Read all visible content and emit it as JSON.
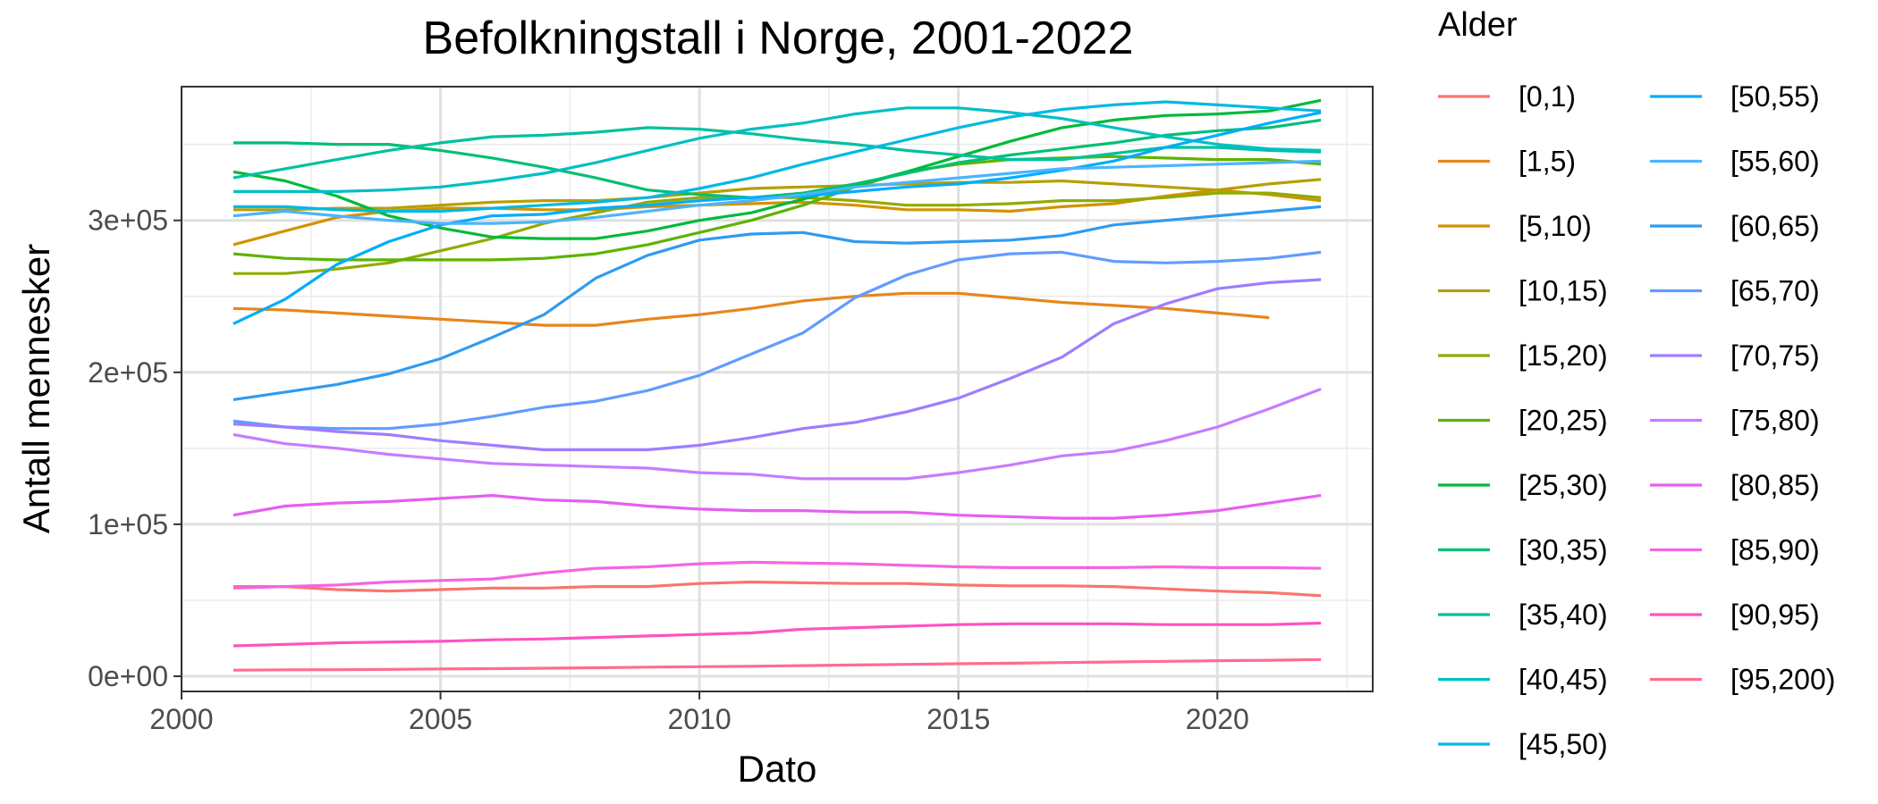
{
  "chart_data": {
    "type": "line",
    "title": "Befolkningstall i Norge, 2001-2022",
    "xlabel": "Dato",
    "ylabel": "Antall mennesker",
    "xlim": [
      2000,
      2023
    ],
    "ylim": [
      -10000,
      388000
    ],
    "x_ticks": [
      2000,
      2005,
      2010,
      2015,
      2020
    ],
    "x_tick_labels": [
      "2000",
      "2005",
      "2010",
      "2015",
      "2020"
    ],
    "y_ticks": [
      0,
      100000,
      200000,
      300000
    ],
    "y_tick_labels": [
      "0e+00",
      "1e+05",
      "2e+05",
      "3e+05"
    ],
    "grid": true,
    "legend_title": "Alder",
    "legend_position": "right",
    "x": [
      2001,
      2002,
      2003,
      2004,
      2005,
      2006,
      2007,
      2008,
      2009,
      2010,
      2011,
      2012,
      2013,
      2014,
      2015,
      2016,
      2017,
      2018,
      2019,
      2020,
      2021,
      2022
    ],
    "series": [
      {
        "name": "[0,1)",
        "color": "#F8766D",
        "values": [
          59000,
          59000,
          57000,
          56000,
          57000,
          58000,
          58000,
          59000,
          59000,
          61000,
          62000,
          61500,
          61000,
          61000,
          60000,
          59500,
          59500,
          59000,
          57500,
          56000,
          55000,
          53000
        ]
      },
      {
        "name": "[1,5)",
        "color": "#E7861B",
        "values": [
          242000,
          241000,
          239000,
          237000,
          235000,
          233000,
          231000,
          231000,
          235000,
          238000,
          242000,
          247000,
          250000,
          252000,
          252000,
          249000,
          246000,
          244000,
          242000,
          239000,
          236000,
          null
        ]
      },
      {
        "name": "[5,10)",
        "color": "#D39200",
        "values": [
          284000,
          293000,
          302000,
          306000,
          308000,
          308000,
          307000,
          307000,
          309000,
          310000,
          311000,
          312000,
          310000,
          307000,
          307000,
          306000,
          309000,
          311000,
          316000,
          320000,
          317000,
          313000
        ]
      },
      {
        "name": "[10,15)",
        "color": "#B79F00",
        "values": [
          307000,
          307000,
          308000,
          308000,
          310000,
          312000,
          313000,
          313000,
          315000,
          318000,
          321000,
          322000,
          323000,
          324000,
          325000,
          325000,
          326000,
          324000,
          322000,
          320000,
          324000,
          327000
        ]
      },
      {
        "name": "[15,20)",
        "color": "#93AA00",
        "values": [
          265000,
          265000,
          268000,
          272000,
          280000,
          288000,
          298000,
          305000,
          312000,
          315000,
          315000,
          315000,
          313000,
          310000,
          310000,
          311000,
          313000,
          313000,
          315000,
          318000,
          318000,
          315000
        ]
      },
      {
        "name": "[20,25)",
        "color": "#5EB300",
        "values": [
          278000,
          275000,
          274000,
          274000,
          274000,
          274000,
          275000,
          278000,
          284000,
          292000,
          300000,
          310000,
          322000,
          332000,
          337000,
          340000,
          341000,
          342000,
          341000,
          340000,
          340000,
          337000
        ]
      },
      {
        "name": "[25,30)",
        "color": "#00BA38",
        "values": [
          332000,
          326000,
          316000,
          303000,
          295000,
          289000,
          288000,
          288000,
          293000,
          300000,
          305000,
          314000,
          323000,
          332000,
          342000,
          352000,
          361000,
          366000,
          369000,
          370000,
          372000,
          379000
        ]
      },
      {
        "name": "[30,35)",
        "color": "#00BF74",
        "values": [
          351000,
          351000,
          350000,
          350000,
          346000,
          341000,
          335000,
          328000,
          320000,
          317000,
          315000,
          318000,
          324000,
          331000,
          338000,
          343000,
          347000,
          351000,
          356000,
          359000,
          361000,
          366000
        ]
      },
      {
        "name": "[35,40)",
        "color": "#00C19F",
        "values": [
          328000,
          334000,
          340000,
          346000,
          351000,
          355000,
          356000,
          358000,
          361000,
          360000,
          357000,
          353000,
          350000,
          346000,
          343000,
          340000,
          340000,
          344000,
          348000,
          348000,
          346000,
          345000
        ]
      },
      {
        "name": "[40,45)",
        "color": "#00BFC4",
        "values": [
          319000,
          319000,
          319000,
          320000,
          322000,
          326000,
          331000,
          338000,
          346000,
          354000,
          360000,
          364000,
          370000,
          374000,
          374000,
          371000,
          367000,
          361000,
          355000,
          350000,
          347000,
          346000
        ]
      },
      {
        "name": "[45,50)",
        "color": "#00B9E3",
        "values": [
          309000,
          309000,
          307000,
          306000,
          306000,
          308000,
          310000,
          312000,
          315000,
          321000,
          328000,
          337000,
          345000,
          353000,
          361000,
          368000,
          373000,
          376000,
          378000,
          376000,
          374000,
          372000
        ]
      },
      {
        "name": "[50,55)",
        "color": "#00ADFA",
        "values": [
          232000,
          248000,
          271000,
          286000,
          297000,
          303000,
          304000,
          308000,
          310000,
          313000,
          315000,
          316000,
          319000,
          322000,
          324000,
          328000,
          333000,
          339000,
          348000,
          356000,
          364000,
          371000
        ]
      },
      {
        "name": "[55,60)",
        "color": "#4CB4FF",
        "values": [
          303000,
          306000,
          303000,
          300000,
          298000,
          298000,
          299000,
          302000,
          306000,
          310000,
          313000,
          317000,
          322000,
          325000,
          328000,
          331000,
          334000,
          335000,
          336000,
          337000,
          338000,
          339000
        ]
      },
      {
        "name": "[60,65)",
        "color": "#2F9BF0",
        "values": [
          182000,
          187000,
          192000,
          199000,
          209000,
          223000,
          238000,
          262000,
          277000,
          287000,
          291000,
          292000,
          286000,
          285000,
          286000,
          287000,
          290000,
          297000,
          300000,
          303000,
          306000,
          309000
        ]
      },
      {
        "name": "[65,70)",
        "color": "#619CFF",
        "values": [
          168000,
          164000,
          163000,
          163000,
          166000,
          171000,
          177000,
          181000,
          188000,
          198000,
          212000,
          226000,
          249000,
          264000,
          274000,
          278000,
          279000,
          273000,
          272000,
          273000,
          275000,
          279000
        ]
      },
      {
        "name": "[70,75)",
        "color": "#9E7DFF",
        "values": [
          166000,
          164000,
          161000,
          159000,
          155000,
          152000,
          149000,
          149000,
          149000,
          152000,
          157000,
          163000,
          167000,
          174000,
          183000,
          196000,
          210000,
          232000,
          245000,
          255000,
          259000,
          261000
        ]
      },
      {
        "name": "[75,80)",
        "color": "#C77CFF",
        "values": [
          159000,
          153000,
          150000,
          146000,
          143000,
          140000,
          139000,
          138000,
          137000,
          134000,
          133000,
          130000,
          130000,
          130000,
          134000,
          139000,
          145000,
          148000,
          155000,
          164000,
          176000,
          189000
        ]
      },
      {
        "name": "[80,85)",
        "color": "#E55FF2",
        "values": [
          106000,
          112000,
          114000,
          115000,
          117000,
          119000,
          116000,
          115000,
          112000,
          110000,
          109000,
          109000,
          108000,
          108000,
          106000,
          105000,
          104000,
          104000,
          106000,
          109000,
          114000,
          119000
        ]
      },
      {
        "name": "[85,90)",
        "color": "#F564E3",
        "values": [
          58000,
          59000,
          60000,
          62000,
          63000,
          64000,
          68000,
          71000,
          72000,
          74000,
          75000,
          74500,
          74000,
          73000,
          72000,
          71500,
          71500,
          71500,
          72000,
          71500,
          71500,
          71000
        ]
      },
      {
        "name": "[90,95)",
        "color": "#FF52C0",
        "values": [
          20000,
          21000,
          22000,
          22500,
          23000,
          24000,
          24500,
          25500,
          26500,
          27500,
          28500,
          31000,
          32000,
          33000,
          34000,
          34500,
          34500,
          34500,
          34000,
          34000,
          34000,
          35000
        ]
      },
      {
        "name": "[95,200)",
        "color": "#FF6C91",
        "values": [
          4000,
          4200,
          4300,
          4500,
          4800,
          5000,
          5300,
          5600,
          6000,
          6300,
          6600,
          7000,
          7400,
          7800,
          8200,
          8600,
          9000,
          9400,
          9800,
          10200,
          10500,
          11000
        ]
      }
    ]
  }
}
